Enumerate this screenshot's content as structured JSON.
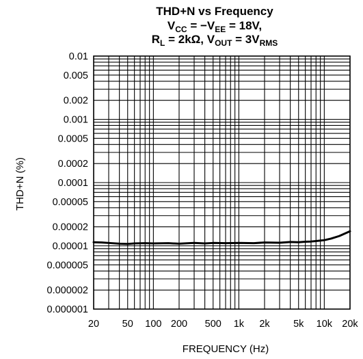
{
  "chart_data": {
    "type": "line",
    "title_lines": [
      {
        "parts": [
          {
            "t": "THD+N vs Frequency"
          }
        ]
      },
      {
        "parts": [
          {
            "t": "V"
          },
          {
            "t": "CC",
            "sub": true
          },
          {
            "t": " = −V"
          },
          {
            "t": "EE",
            "sub": true
          },
          {
            "t": " = 18V,"
          }
        ]
      },
      {
        "parts": [
          {
            "t": "R"
          },
          {
            "t": "L",
            "sub": true
          },
          {
            "t": " = 2kΩ, V"
          },
          {
            "t": "OUT",
            "sub": true
          },
          {
            "t": " = 3V"
          },
          {
            "t": "RMS",
            "sub": true
          }
        ]
      }
    ],
    "xlabel": "FREQUENCY (Hz)",
    "ylabel": "THD+N (%)",
    "x_scale": "log",
    "y_scale": "log",
    "xlim": [
      20,
      20000
    ],
    "ylim": [
      1e-06,
      0.01
    ],
    "grid": true,
    "x_ticks": [
      {
        "value": 20,
        "label": "20"
      },
      {
        "value": 50,
        "label": "50"
      },
      {
        "value": 100,
        "label": "100"
      },
      {
        "value": 200,
        "label": "200"
      },
      {
        "value": 500,
        "label": "500"
      },
      {
        "value": 1000,
        "label": "1k"
      },
      {
        "value": 2000,
        "label": "2k"
      },
      {
        "value": 5000,
        "label": "5k"
      },
      {
        "value": 10000,
        "label": "10k"
      },
      {
        "value": 20000,
        "label": "20k"
      }
    ],
    "y_ticks": [
      {
        "value": 0.01,
        "label": "0.01"
      },
      {
        "value": 0.005,
        "label": "0.005"
      },
      {
        "value": 0.002,
        "label": "0.002"
      },
      {
        "value": 0.001,
        "label": "0.001"
      },
      {
        "value": 0.0005,
        "label": "0.0005"
      },
      {
        "value": 0.0002,
        "label": "0.0002"
      },
      {
        "value": 0.0001,
        "label": "0.0001"
      },
      {
        "value": 5e-05,
        "label": "0.00005"
      },
      {
        "value": 2e-05,
        "label": "0.00002"
      },
      {
        "value": 1e-05,
        "label": "0.00001"
      },
      {
        "value": 5e-06,
        "label": "0.000005"
      },
      {
        "value": 2e-06,
        "label": "0.000002"
      },
      {
        "value": 1e-06,
        "label": "0.000001"
      }
    ],
    "series": [
      {
        "color": "#000000",
        "x": [
          20,
          25,
          30,
          40,
          50,
          60,
          80,
          100,
          150,
          200,
          300,
          400,
          500,
          700,
          1000,
          1500,
          2000,
          3000,
          4000,
          5000,
          6000,
          7000,
          8000,
          10000,
          12000,
          15000,
          20000
        ],
        "y": [
          1.14e-05,
          1.13e-05,
          1.11e-05,
          1.08e-05,
          1.07e-05,
          1.09e-05,
          1.1e-05,
          1.09e-05,
          1.1e-05,
          1.08e-05,
          1.11e-05,
          1.09e-05,
          1.11e-05,
          1.1e-05,
          1.11e-05,
          1.1e-05,
          1.13e-05,
          1.12e-05,
          1.15e-05,
          1.14e-05,
          1.16e-05,
          1.17e-05,
          1.19e-05,
          1.23e-05,
          1.3e-05,
          1.43e-05,
          1.7e-05
        ]
      }
    ]
  }
}
